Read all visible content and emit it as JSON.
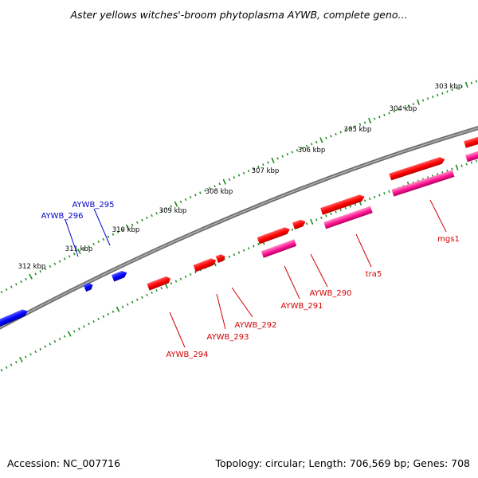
{
  "title": "Aster yellows witches'-broom phytoplasma AYWB, complete geno...",
  "footer": {
    "accession": "Accession: NC_007716",
    "summary": "Topology: circular; Length: 706,569 bp; Genes: 708"
  },
  "colors": {
    "background": "#ffffff",
    "backbone": "#808080",
    "tick": "#1f8a1f",
    "forward_gene": "#0000ff",
    "reverse_gene": "#ff0000",
    "reverse_rna": "#ff1493",
    "forward_label": "#0000cc",
    "reverse_label": "#d40000"
  },
  "scale": {
    "unit": "kbp",
    "tick_labels": [
      "303 kbp",
      "304 kbp",
      "305 kbp",
      "306 kbp",
      "307 kbp",
      "308 kbp",
      "309 kbp",
      "310 kbp",
      "311 kbp",
      "312 kbp"
    ]
  },
  "features": [
    {
      "name": "",
      "strand": "forward",
      "kind": "gene"
    },
    {
      "name": "AYWB_296",
      "strand": "forward",
      "kind": "gene"
    },
    {
      "name": "AYWB_295",
      "strand": "forward",
      "kind": "gene"
    },
    {
      "name": "AYWB_294",
      "strand": "reverse",
      "kind": "gene"
    },
    {
      "name": "AYWB_293",
      "strand": "reverse",
      "kind": "gene"
    },
    {
      "name": "AYWB_292",
      "strand": "reverse",
      "kind": "gene"
    },
    {
      "name": "AYWB_291",
      "strand": "reverse",
      "kind": "gene"
    },
    {
      "name": "AYWB_290",
      "strand": "reverse",
      "kind": "gene"
    },
    {
      "name": "tra5",
      "strand": "reverse",
      "kind": "gene"
    },
    {
      "name": "mgs1",
      "strand": "reverse",
      "kind": "gene"
    },
    {
      "name": "",
      "strand": "reverse",
      "kind": "gene"
    }
  ]
}
